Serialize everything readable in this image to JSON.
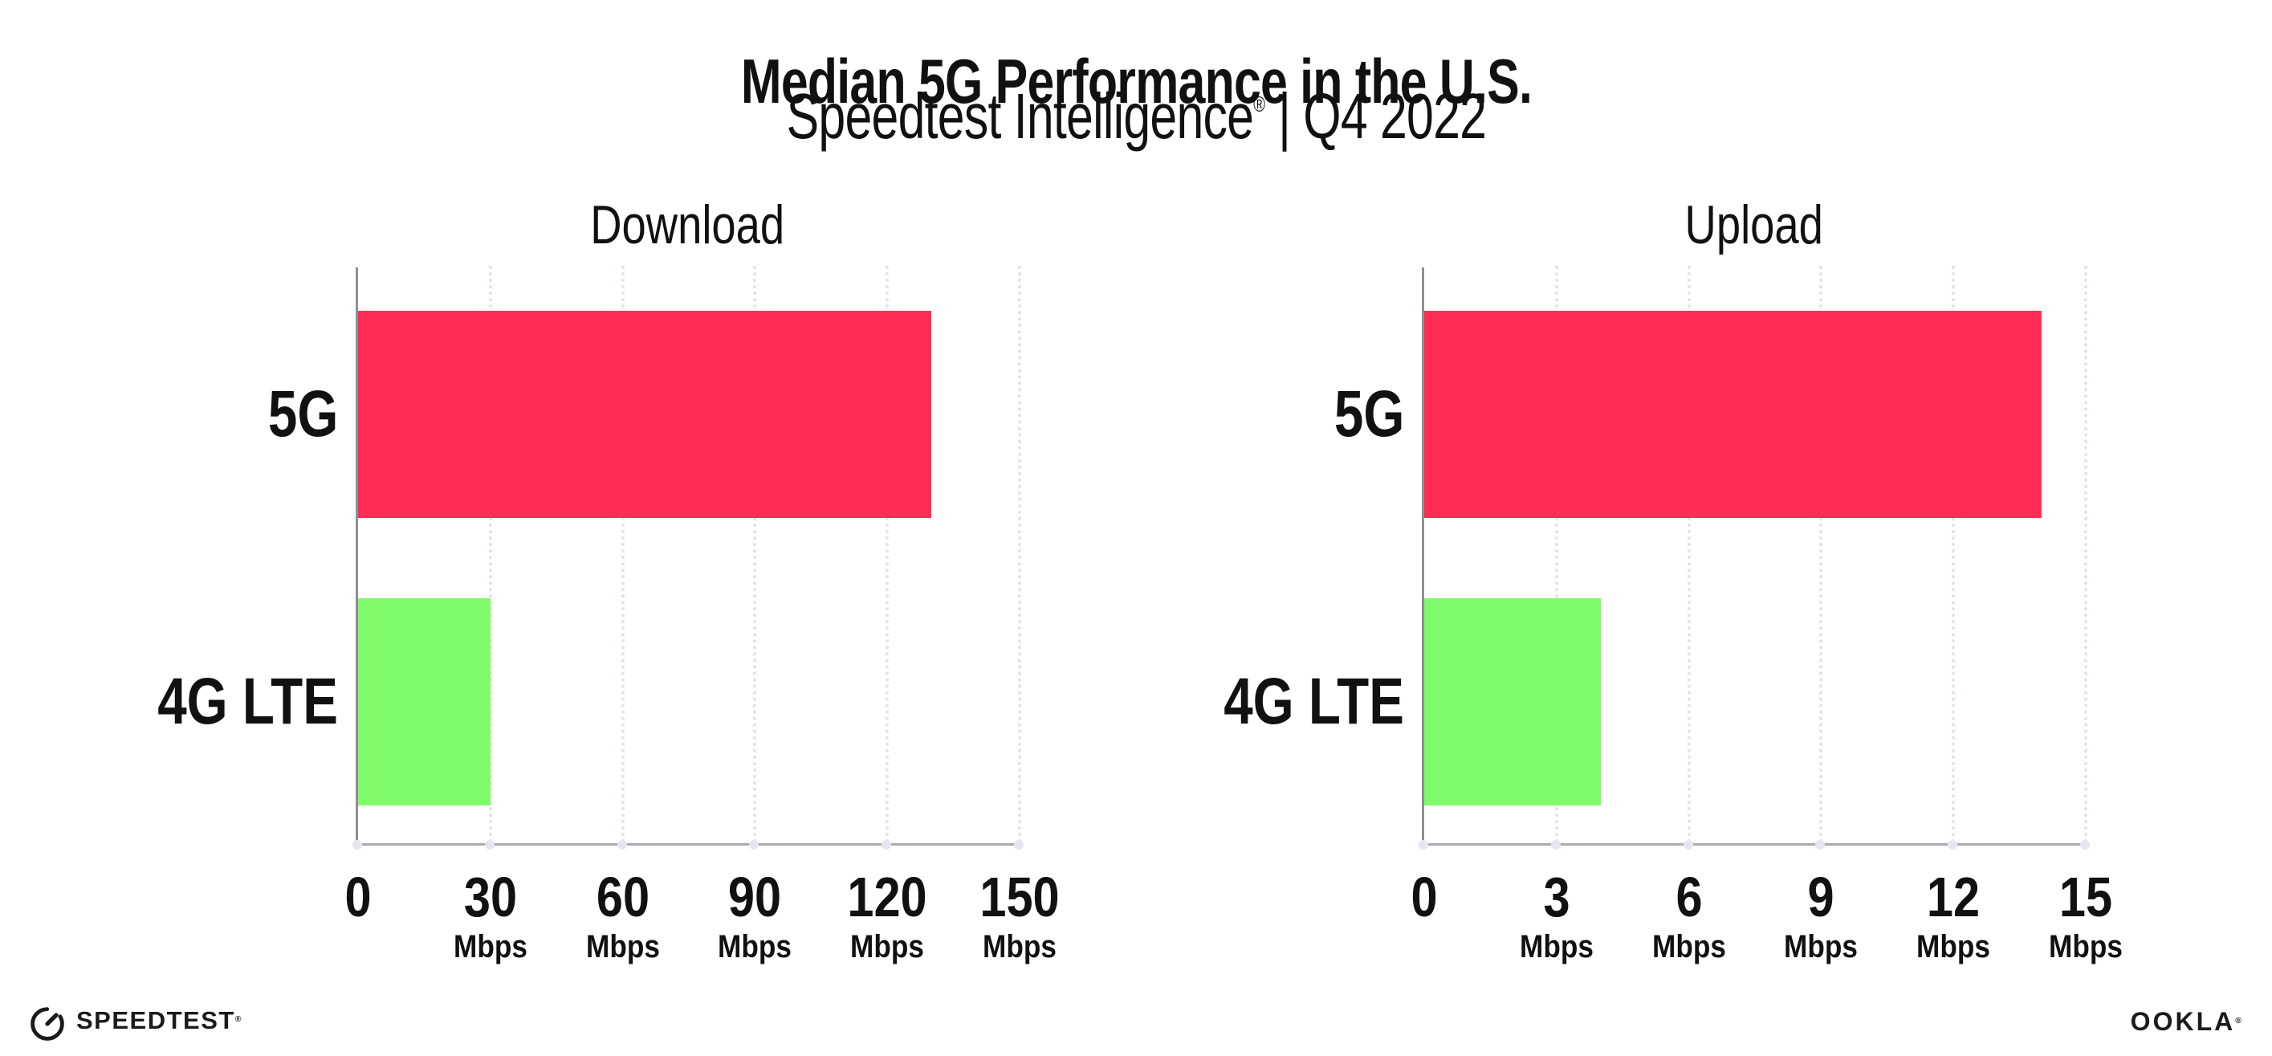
{
  "header": {
    "title": "Median 5G Performance in the U.S.",
    "subtitle_brand": "Speedtest Intelligence",
    "subtitle_reg": "®",
    "subtitle_rest": " | Q4 2022"
  },
  "chart_data": [
    {
      "type": "bar",
      "orientation": "horizontal",
      "title": "Download",
      "categories": [
        "5G",
        "4G LTE"
      ],
      "values": [
        130,
        30
      ],
      "unit": "Mbps",
      "xlim": [
        0,
        150
      ],
      "xticks": [
        0,
        30,
        60,
        90,
        120,
        150
      ],
      "bar_colors": [
        "#FF2D55",
        "#7FFA69"
      ],
      "grid": "dotted-vertical",
      "legend": "none"
    },
    {
      "type": "bar",
      "orientation": "horizontal",
      "title": "Upload",
      "categories": [
        "5G",
        "4G LTE"
      ],
      "values": [
        14,
        4
      ],
      "unit": "Mbps",
      "xlim": [
        0,
        15
      ],
      "xticks": [
        0,
        3,
        6,
        9,
        12,
        15
      ],
      "bar_colors": [
        "#FF2D55",
        "#7FFA69"
      ],
      "grid": "dotted-vertical",
      "legend": "none"
    }
  ],
  "footer": {
    "speedtest_wordmark": "SPEEDTEST",
    "speedtest_reg": "®",
    "ookla_wordmark": "OOKLA",
    "ookla_reg": "®"
  },
  "colors": {
    "bar_5g": "#FF2D55",
    "bar_4g_lte": "#7FFA69",
    "gridline": "#E2E2EC",
    "y_axis": "#8F8F96",
    "x_axis": "#ABABB2",
    "text": "#111111"
  }
}
